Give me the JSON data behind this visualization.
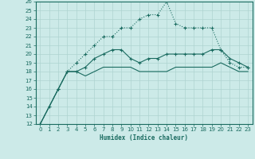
{
  "xlabel": "Humidex (Indice chaleur)",
  "background_color": "#cceae8",
  "grid_color": "#aed4d0",
  "line_color": "#1a6b60",
  "xlim": [
    -0.5,
    23.5
  ],
  "ylim": [
    12,
    26
  ],
  "xticks": [
    0,
    1,
    2,
    3,
    4,
    5,
    6,
    7,
    8,
    9,
    10,
    11,
    12,
    13,
    14,
    15,
    16,
    17,
    18,
    19,
    20,
    21,
    22,
    23
  ],
  "yticks": [
    12,
    13,
    14,
    15,
    16,
    17,
    18,
    19,
    20,
    21,
    22,
    23,
    24,
    25,
    26
  ],
  "line1_x": [
    0,
    1,
    2,
    3,
    4,
    5,
    6,
    7,
    8,
    9,
    10,
    11,
    12,
    13,
    14,
    15,
    16,
    17,
    18,
    19,
    20,
    21,
    22,
    23
  ],
  "line1_y": [
    12,
    14,
    16,
    18,
    19,
    20,
    21,
    22,
    22,
    23,
    23,
    24,
    24.5,
    24.5,
    26,
    23.5,
    23,
    23,
    23,
    23,
    20.5,
    19,
    18.5,
    18.5
  ],
  "line2_x": [
    0,
    2,
    3,
    4,
    5,
    6,
    7,
    8,
    9,
    10,
    11,
    12,
    13,
    14,
    15,
    16,
    17,
    18,
    19,
    20,
    21,
    22,
    23
  ],
  "line2_y": [
    12,
    16,
    18,
    18,
    18.5,
    19.5,
    20,
    20.5,
    20.5,
    19.5,
    19,
    19.5,
    19.5,
    20,
    20,
    20,
    20,
    20,
    20.5,
    20.5,
    19.5,
    19,
    18.5
  ],
  "line3_x": [
    0,
    2,
    3,
    4,
    5,
    6,
    7,
    8,
    9,
    10,
    11,
    12,
    13,
    14,
    15,
    16,
    17,
    18,
    19,
    20,
    21,
    22,
    23
  ],
  "line3_y": [
    12,
    16,
    18,
    18,
    17.5,
    18,
    18.5,
    18.5,
    18.5,
    18.5,
    18,
    18,
    18,
    18,
    18.5,
    18.5,
    18.5,
    18.5,
    18.5,
    19,
    18.5,
    18,
    18
  ]
}
